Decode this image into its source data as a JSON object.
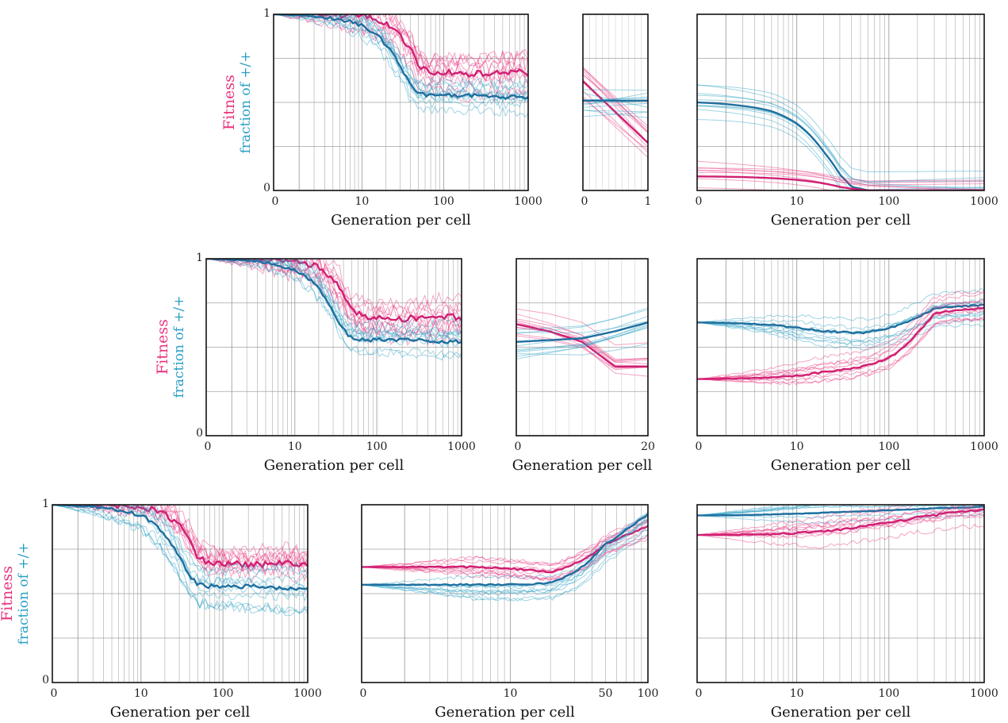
{
  "colors": {
    "fitness": "#e8337f",
    "fitness_dark": "#d01f73",
    "fraction": "#2a9fc4",
    "fraction_dark": "#1f6f9f",
    "grid": "#9a9a9a",
    "axis": "#111111"
  },
  "labels": {
    "fitness": "Fitness",
    "fraction": "fraction of +/+",
    "x_generation": "Generation per cell"
  },
  "chart_data": [
    {
      "id": "r0c0",
      "type": "line",
      "row": 0,
      "col": 0,
      "x_scale": "log1p",
      "xlim": [
        0,
        1000
      ],
      "ylim": [
        0,
        1
      ],
      "x_ticks": [
        "0",
        "10",
        "100",
        "1000"
      ],
      "y_ticks": [
        "0",
        "1"
      ],
      "xlabel": "Generation per cell",
      "show_ylabel": true,
      "series": [
        {
          "role": "fitness",
          "x": [
            0,
            10,
            20,
            30,
            40,
            50,
            70,
            100,
            200,
            500,
            1000
          ],
          "y": [
            1,
            0.99,
            0.95,
            0.88,
            0.8,
            0.71,
            0.67,
            0.67,
            0.66,
            0.67,
            0.67
          ],
          "noise": 0.04
        },
        {
          "role": "fraction",
          "x": [
            0,
            10,
            20,
            30,
            40,
            50,
            70,
            100,
            200,
            500,
            1000
          ],
          "y": [
            1,
            0.94,
            0.83,
            0.7,
            0.6,
            0.55,
            0.54,
            0.54,
            0.54,
            0.53,
            0.53
          ],
          "noise": 0.025
        }
      ]
    },
    {
      "id": "r0c1",
      "type": "line",
      "row": 0,
      "col": 1,
      "x_scale": "linear",
      "xlim": [
        0,
        1
      ],
      "ylim": [
        0,
        1
      ],
      "x_ticks": [
        "0",
        "1"
      ],
      "y_ticks": [],
      "xlabel": "",
      "show_ylabel": false,
      "series": [
        {
          "role": "fitness",
          "x": [
            0,
            1
          ],
          "y": [
            0.62,
            0.27
          ],
          "noise": 0
        },
        {
          "role": "fraction",
          "x": [
            0,
            1
          ],
          "y": [
            0.51,
            0.51
          ],
          "noise": 0
        }
      ]
    },
    {
      "id": "r0c2",
      "type": "line",
      "row": 0,
      "col": 2,
      "x_scale": "log1p",
      "xlim": [
        0,
        1000
      ],
      "ylim": [
        0,
        1
      ],
      "x_ticks": [
        "0",
        "10",
        "100",
        "1000"
      ],
      "y_ticks": [],
      "xlabel": "Generation per cell",
      "show_ylabel": false,
      "series": [
        {
          "role": "fraction",
          "x": [
            0,
            5,
            10,
            20,
            30,
            40,
            60,
            100,
            1000
          ],
          "y": [
            0.5,
            0.45,
            0.38,
            0.22,
            0.09,
            0.02,
            0,
            0,
            0
          ],
          "noise": 0
        },
        {
          "role": "fitness",
          "x": [
            0,
            5,
            10,
            20,
            30,
            40,
            60,
            100,
            1000
          ],
          "y": [
            0.08,
            0.07,
            0.06,
            0.04,
            0.02,
            0.01,
            0,
            0,
            0
          ],
          "noise": 0
        }
      ]
    },
    {
      "id": "r1c0",
      "type": "line",
      "row": 1,
      "col": 0,
      "x_scale": "log1p",
      "xlim": [
        0,
        1000
      ],
      "ylim": [
        0,
        1
      ],
      "x_ticks": [
        "0",
        "10",
        "100",
        "1000"
      ],
      "y_ticks": [
        "0",
        "1"
      ],
      "xlabel": "Generation per cell",
      "show_ylabel": true,
      "series": [
        {
          "role": "fitness",
          "x": [
            0,
            10,
            20,
            30,
            40,
            50,
            70,
            100,
            200,
            500,
            1000
          ],
          "y": [
            1,
            0.99,
            0.95,
            0.88,
            0.8,
            0.71,
            0.67,
            0.67,
            0.66,
            0.67,
            0.67
          ],
          "noise": 0.04
        },
        {
          "role": "fraction",
          "x": [
            0,
            10,
            20,
            30,
            40,
            50,
            70,
            100,
            200,
            500,
            1000
          ],
          "y": [
            1,
            0.94,
            0.83,
            0.7,
            0.6,
            0.55,
            0.54,
            0.54,
            0.54,
            0.53,
            0.53
          ],
          "noise": 0.025
        }
      ]
    },
    {
      "id": "r1c1",
      "type": "line",
      "row": 1,
      "col": 1,
      "x_scale": "linear",
      "xlim": [
        0,
        20
      ],
      "ylim": [
        0,
        1
      ],
      "x_ticks": [
        "0",
        "20"
      ],
      "y_ticks": [],
      "xlabel": "Generation per cell",
      "show_ylabel": false,
      "series": [
        {
          "role": "fitness",
          "x": [
            0,
            5,
            10,
            15,
            20
          ],
          "y": [
            0.63,
            0.59,
            0.53,
            0.39,
            0.39
          ],
          "noise": 0
        },
        {
          "role": "fraction",
          "x": [
            0,
            5,
            10,
            15,
            20
          ],
          "y": [
            0.53,
            0.54,
            0.55,
            0.59,
            0.64
          ],
          "noise": 0
        }
      ]
    },
    {
      "id": "r1c2",
      "type": "line",
      "row": 1,
      "col": 2,
      "x_scale": "log1p",
      "xlim": [
        0,
        1000
      ],
      "ylim": [
        0,
        1
      ],
      "x_ticks": [
        "0",
        "10",
        "100",
        "1000"
      ],
      "y_ticks": [],
      "xlabel": "Generation per cell",
      "show_ylabel": false,
      "series": [
        {
          "role": "fraction",
          "x": [
            0,
            10,
            20,
            50,
            100,
            200,
            300,
            500,
            1000
          ],
          "y": [
            0.64,
            0.61,
            0.59,
            0.58,
            0.61,
            0.67,
            0.72,
            0.73,
            0.74
          ],
          "noise": 0.01
        },
        {
          "role": "fitness",
          "x": [
            0,
            10,
            20,
            50,
            100,
            200,
            300,
            500,
            1000
          ],
          "y": [
            0.32,
            0.34,
            0.36,
            0.39,
            0.44,
            0.58,
            0.69,
            0.71,
            0.72
          ],
          "noise": 0.01
        }
      ]
    },
    {
      "id": "r2c0",
      "type": "line",
      "row": 2,
      "col": 0,
      "x_scale": "log1p",
      "xlim": [
        0,
        1000
      ],
      "ylim": [
        0,
        1
      ],
      "x_ticks": [
        "0",
        "10",
        "100",
        "1000"
      ],
      "y_ticks": [
        "0",
        "1"
      ],
      "xlabel": "Generation per cell",
      "show_ylabel": true,
      "series": [
        {
          "role": "fitness",
          "x": [
            0,
            10,
            20,
            30,
            40,
            50,
            70,
            100,
            200,
            500,
            1000
          ],
          "y": [
            1,
            0.99,
            0.95,
            0.88,
            0.8,
            0.71,
            0.67,
            0.67,
            0.66,
            0.67,
            0.67
          ],
          "noise": 0.04
        },
        {
          "role": "fraction",
          "x": [
            0,
            10,
            20,
            30,
            40,
            50,
            70,
            100,
            200,
            500,
            1000
          ],
          "y": [
            1,
            0.94,
            0.83,
            0.7,
            0.6,
            0.55,
            0.54,
            0.54,
            0.54,
            0.53,
            0.53
          ],
          "noise": 0.025
        }
      ]
    },
    {
      "id": "r2c1",
      "type": "line",
      "row": 2,
      "col": 1,
      "x_scale": "log1p",
      "xlim": [
        0,
        100
      ],
      "ylim": [
        0,
        1
      ],
      "x_ticks": [
        "0",
        "10",
        "50",
        "100"
      ],
      "y_ticks": [],
      "xlabel": "Generation per cell",
      "show_ylabel": false,
      "series": [
        {
          "role": "fitness",
          "x": [
            0,
            5,
            10,
            20,
            30,
            40,
            50,
            70,
            100
          ],
          "y": [
            0.65,
            0.65,
            0.64,
            0.62,
            0.67,
            0.72,
            0.78,
            0.83,
            0.88
          ],
          "noise": 0.01
        },
        {
          "role": "fraction",
          "x": [
            0,
            5,
            10,
            20,
            30,
            40,
            50,
            70,
            100
          ],
          "y": [
            0.55,
            0.55,
            0.55,
            0.56,
            0.62,
            0.7,
            0.78,
            0.86,
            0.95
          ],
          "noise": 0.01
        }
      ]
    },
    {
      "id": "r2c2",
      "type": "line",
      "row": 2,
      "col": 2,
      "x_scale": "log1p",
      "xlim": [
        0,
        1000
      ],
      "ylim": [
        0,
        1
      ],
      "x_ticks": [
        "0",
        "10",
        "100",
        "1000"
      ],
      "y_ticks": [],
      "xlabel": "Generation per cell",
      "show_ylabel": false,
      "series": [
        {
          "role": "fraction",
          "x": [
            0,
            10,
            30,
            100,
            300,
            1000
          ],
          "y": [
            0.94,
            0.95,
            0.96,
            0.97,
            0.98,
            0.99
          ],
          "noise": 0.004
        },
        {
          "role": "fitness",
          "x": [
            0,
            10,
            20,
            30,
            50,
            100,
            200,
            500,
            1000
          ],
          "y": [
            0.83,
            0.84,
            0.85,
            0.86,
            0.88,
            0.9,
            0.93,
            0.96,
            0.97
          ],
          "noise": 0.012
        }
      ]
    }
  ]
}
